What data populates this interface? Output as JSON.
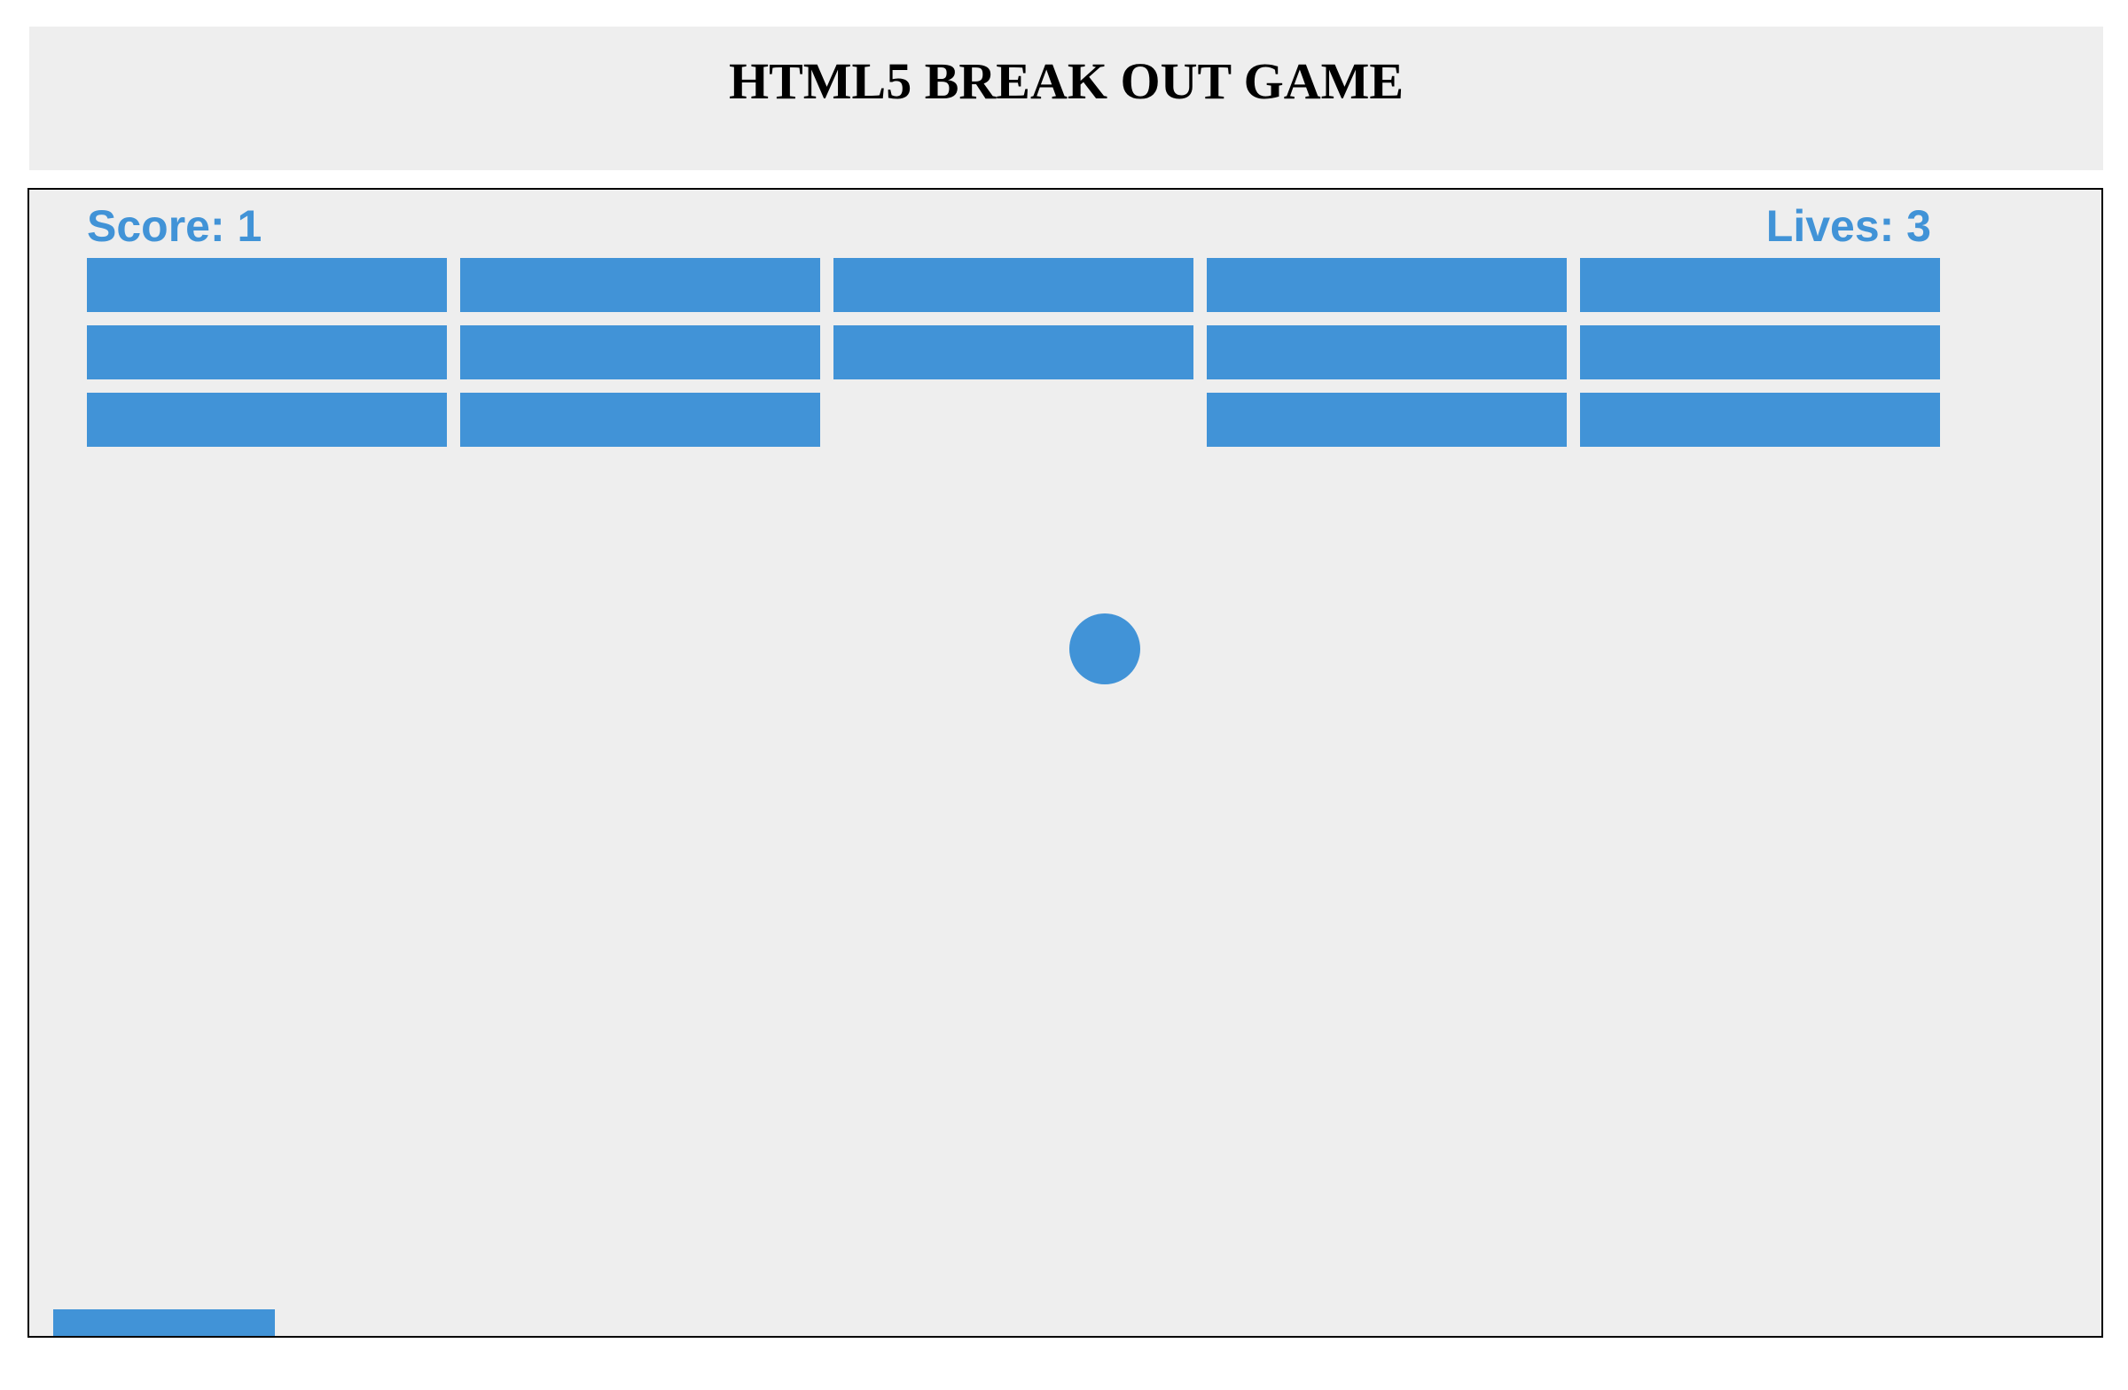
{
  "header": {
    "title": "HTML5 BREAK OUT GAME"
  },
  "game": {
    "score_text": "Score: 1",
    "lives_text": "Lives: 3",
    "score": 1,
    "lives": 3,
    "color": "#4193d7",
    "background": "#eeeeee",
    "brick_rows": 3,
    "brick_columns": 5,
    "bricks_alive": [
      [
        true,
        true,
        true,
        true,
        true
      ],
      [
        true,
        true,
        true,
        true,
        true
      ],
      [
        true,
        true,
        false,
        true,
        true
      ]
    ]
  }
}
